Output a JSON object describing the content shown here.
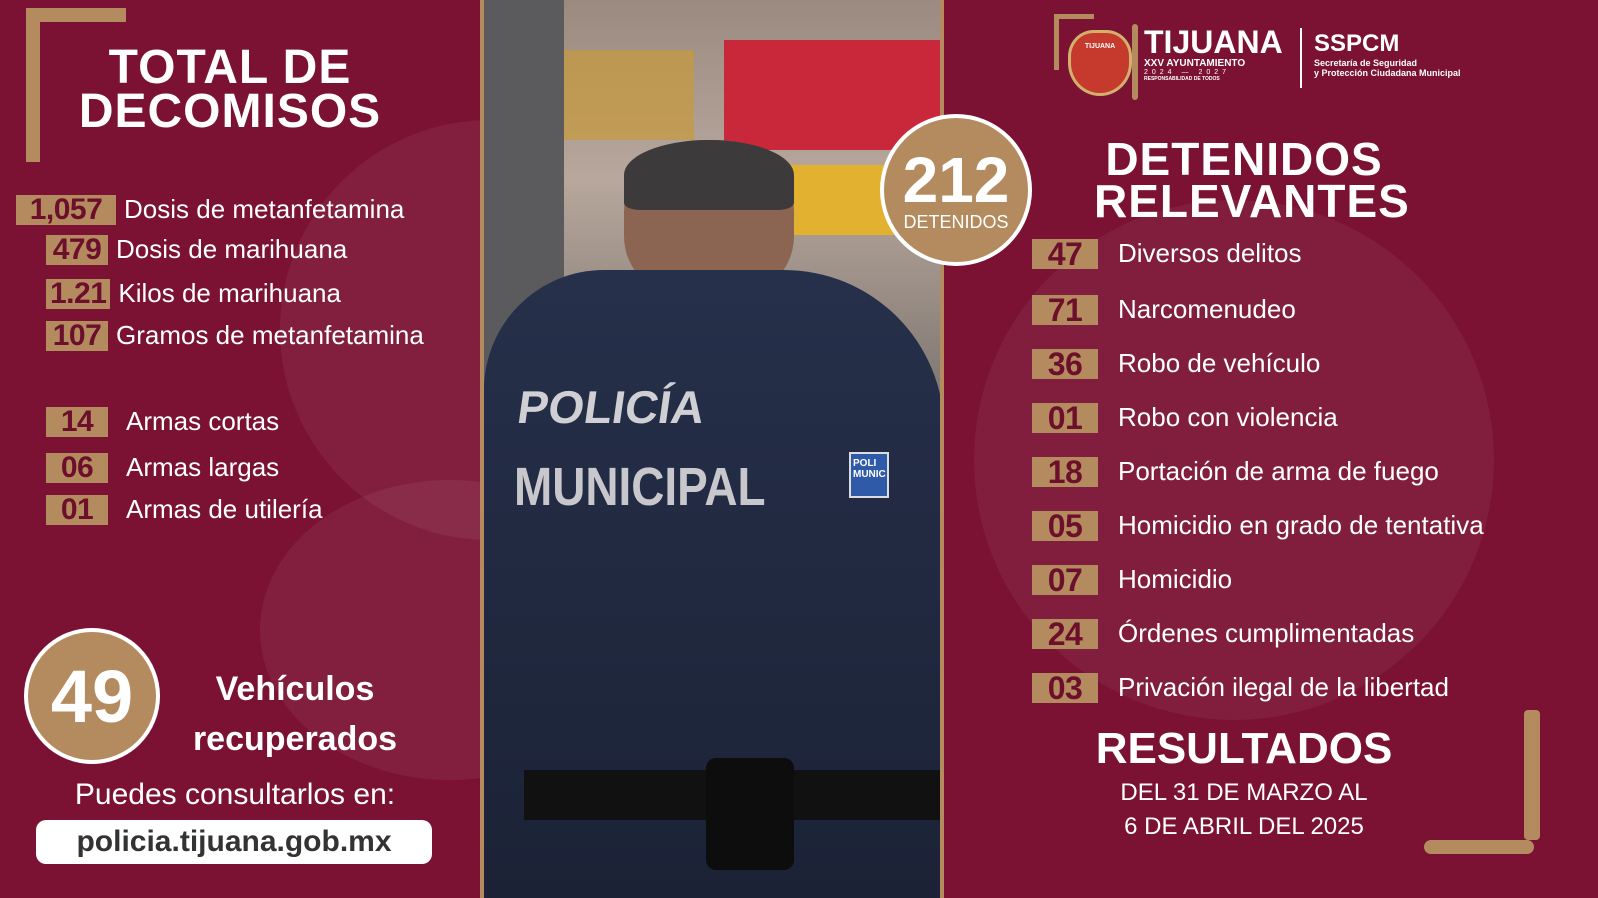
{
  "colors": {
    "burgundy": "#7b1133",
    "gold": "#b38b5e",
    "white": "#ffffff"
  },
  "left": {
    "title_line1": "TOTAL DE",
    "title_line2": "DECOMISOS",
    "drugs": [
      {
        "value": "1,057",
        "label": "Dosis de metanfetamina"
      },
      {
        "value": "479",
        "label": "Dosis de marihuana"
      },
      {
        "value": "1.21",
        "label": "Kilos de marihuana"
      },
      {
        "value": "107",
        "label": "Gramos de metanfetamina"
      }
    ],
    "weapons": [
      {
        "value": "14",
        "label": "Armas cortas"
      },
      {
        "value": "06",
        "label": "Armas largas"
      },
      {
        "value": "01",
        "label": "Armas de utilería"
      }
    ],
    "vehicles": {
      "value": "49",
      "label_line1": "Vehículos",
      "label_line2": "recuperados"
    },
    "consult_text": "Puedes consultarlos en:",
    "url": "policia.tijuana.gob.mx"
  },
  "photo": {
    "jacket_line1": "POLICÍA",
    "jacket_line2": "MUNICIPAL",
    "patch": "POLI MUNIC"
  },
  "header": {
    "city": "TIJUANA",
    "ayuntamiento": "XXV AYUNTAMIENTO",
    "years": "2024 — 2027",
    "motto": "RESPONSABILIDAD DE TODOS",
    "agency": "SSPCM",
    "agency_line1": "Secretaría de Seguridad",
    "agency_line2": "y Protección Ciudadana Municipal",
    "crest_text": "TIJUANA"
  },
  "detenidos": {
    "value": "212",
    "label": "DETENIDOS"
  },
  "right": {
    "title_line1": "DETENIDOS",
    "title_line2": "RELEVANTES",
    "items": [
      {
        "value": "47",
        "label": "Diversos delitos"
      },
      {
        "value": "71",
        "label": "Narcomenudeo"
      },
      {
        "value": "36",
        "label": "Robo de vehículo"
      },
      {
        "value": "01",
        "label": "Robo con violencia"
      },
      {
        "value": "18",
        "label": "Portación de arma de fuego"
      },
      {
        "value": "05",
        "label": "Homicidio en grado de tentativa"
      },
      {
        "value": "07",
        "label": "Homicidio"
      },
      {
        "value": "24",
        "label": "Órdenes cumplimentadas"
      },
      {
        "value": "03",
        "label": "Privación ilegal de la libertad"
      }
    ],
    "results_title": "RESULTADOS",
    "results_line1": "DEL 31 DE MARZO AL",
    "results_line2": "6 DE ABRIL DEL 2025"
  }
}
